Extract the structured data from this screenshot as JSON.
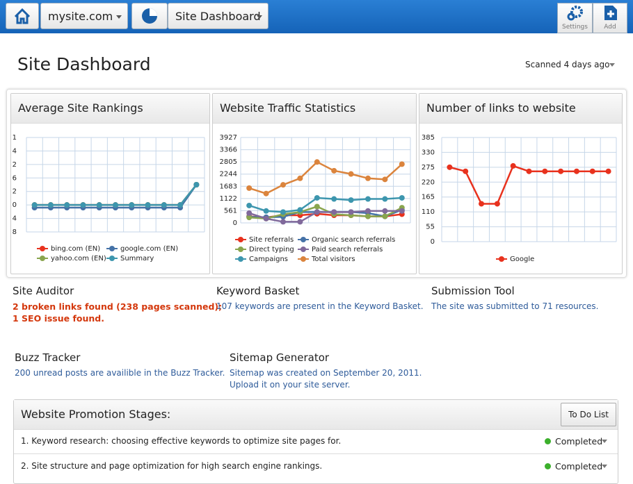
{
  "topbar": {
    "site": "mysite.com",
    "dashboard": "Site Dashboard",
    "settings": "Settings",
    "add": "Add"
  },
  "header": {
    "title": "Site Dashboard",
    "scanned": "Scanned 4 days ago"
  },
  "chart_data": [
    {
      "type": "line",
      "title": "Average Site Rankings",
      "categories": [
        null,
        null,
        null,
        null,
        null,
        null,
        null,
        null,
        null,
        null,
        null
      ],
      "ylim": [
        0,
        7
      ],
      "yticks": [
        {
          "value": 7,
          "label": "1"
        },
        {
          "value": 6,
          "label": "4"
        },
        {
          "value": 5,
          "label": "2"
        },
        {
          "value": 4,
          "label": "6"
        },
        {
          "value": 3,
          "label": "2"
        },
        {
          "value": 2,
          "label": "0"
        },
        {
          "value": 1,
          "label": "4"
        },
        {
          "value": 0,
          "label": "8"
        }
      ],
      "grid": true,
      "series": [
        {
          "name": "bing.com (EN)",
          "color": "#e8321e",
          "values": [
            2,
            2,
            2,
            2,
            2,
            2,
            2,
            2,
            2,
            2,
            3.5
          ]
        },
        {
          "name": "google.com (EN)",
          "color": "#4572a7",
          "values": [
            1.8,
            1.8,
            1.8,
            1.8,
            1.8,
            1.8,
            1.8,
            1.8,
            1.8,
            1.8,
            3.5
          ]
        },
        {
          "name": "yahoo.com (EN)",
          "color": "#89a54e",
          "values": [
            2,
            2,
            2,
            2,
            2,
            2,
            2,
            2,
            2,
            2,
            3.5
          ]
        },
        {
          "name": "Summary",
          "color": "#3d96ae",
          "values": [
            2,
            2,
            2,
            2,
            2,
            2,
            2,
            2,
            2,
            2,
            3.5
          ]
        }
      ]
    },
    {
      "type": "line",
      "title": "Website Traffic Statistics",
      "categories": [
        null,
        null,
        null,
        null,
        null,
        null,
        null,
        null,
        null,
        null
      ],
      "ylim": [
        0,
        3927
      ],
      "yticks": [
        0,
        561,
        1122,
        1683,
        2244,
        2805,
        3366,
        3927
      ],
      "grid": true,
      "series": [
        {
          "name": "Site referrals",
          "color": "#e8321e",
          "values": [
            300,
            250,
            350,
            350,
            420,
            350,
            350,
            300,
            300,
            400
          ]
        },
        {
          "name": "Organic search referrals",
          "color": "#4572a7",
          "values": [
            280,
            260,
            280,
            500,
            500,
            500,
            500,
            450,
            300,
            600
          ]
        },
        {
          "name": "Direct typing",
          "color": "#89a54e",
          "values": [
            250,
            200,
            400,
            500,
            750,
            400,
            350,
            300,
            300,
            700
          ]
        },
        {
          "name": "Paid search referrals",
          "color": "#80699b",
          "values": [
            450,
            200,
            50,
            50,
            500,
            500,
            500,
            550,
            550,
            550
          ]
        },
        {
          "name": "Campaigns",
          "color": "#3d96ae",
          "values": [
            800,
            550,
            500,
            600,
            1150,
            1100,
            1050,
            1100,
            1100,
            1150
          ]
        },
        {
          "name": "Total visitors",
          "color": "#db843d",
          "values": [
            1600,
            1350,
            1750,
            2050,
            2800,
            2400,
            2250,
            2050,
            2000,
            2700
          ]
        }
      ]
    },
    {
      "type": "line",
      "title": "Number of links to website",
      "categories": [
        null,
        null,
        null,
        null,
        null,
        null,
        null,
        null,
        null,
        null,
        null
      ],
      "ylim": [
        0,
        385
      ],
      "yticks": [
        0,
        55,
        110,
        165,
        220,
        275,
        330,
        385
      ],
      "grid": true,
      "series": [
        {
          "name": "Google",
          "color": "#e8321e",
          "values": [
            275,
            260,
            140,
            140,
            280,
            260,
            260,
            260,
            260,
            260,
            260
          ]
        }
      ]
    }
  ],
  "tools": {
    "auditor": {
      "title": "Site Auditor",
      "lines": [
        "2 broken links found (238 pages scanned);",
        "1 SEO issue found."
      ]
    },
    "keyword": {
      "title": "Keyword Basket",
      "text": "107 keywords are present in the Keyword Basket."
    },
    "submission": {
      "title": "Submission Tool",
      "text": "The site was submitted to 71 resources."
    },
    "buzz": {
      "title": "Buzz Tracker",
      "text": "200 unread posts are availible in the Buzz Tracker."
    },
    "sitemap": {
      "title": "Sitemap Generator",
      "lines": [
        "Sitemap was created on September 20, 2011.",
        "Upload it on your site server."
      ]
    }
  },
  "stages": {
    "title": "Website Promotion Stages:",
    "button": "To Do List",
    "rows": [
      {
        "text": "1. Keyword research: choosing effective keywords to optimize site pages for.",
        "status": "Completed"
      },
      {
        "text": "2. Site structure and page optimization for high search engine rankings.",
        "status": "Completed"
      }
    ]
  }
}
